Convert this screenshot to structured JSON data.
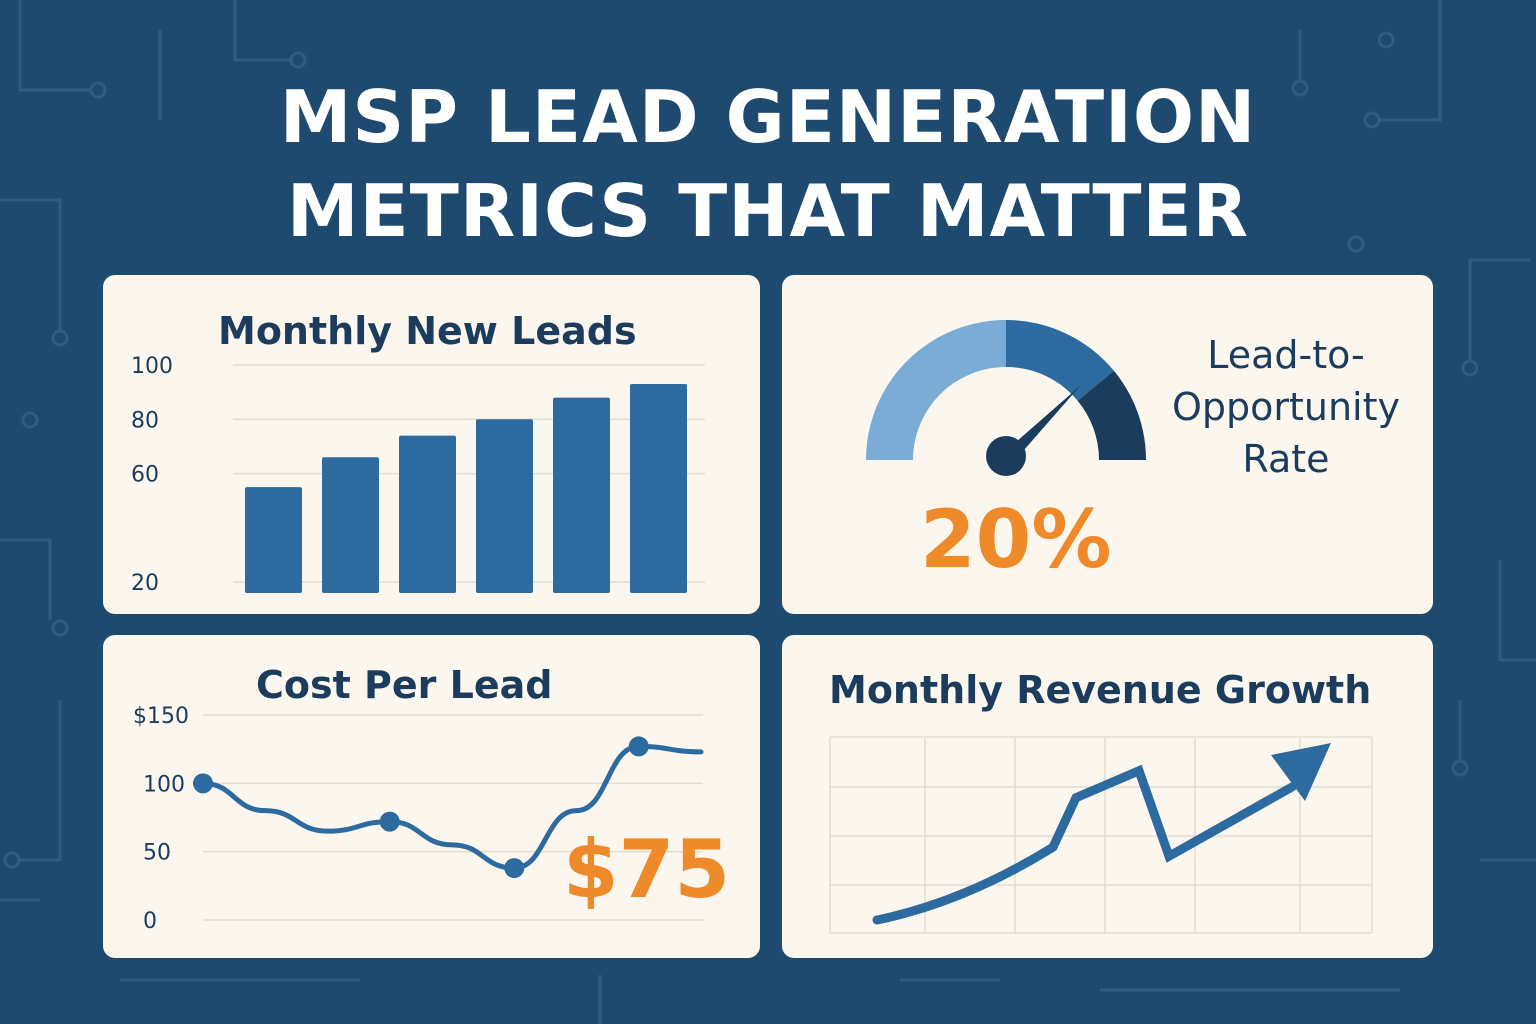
{
  "title_line1": "MSP LEAD GENERATION",
  "title_line2": "METRICS THAT MATTER",
  "colors": {
    "background": "#1e4a70",
    "panel": "#fbf7ee",
    "bar": "#2d6a9f",
    "accent": "#ee8a2a",
    "text": "#1c3c5e"
  },
  "panels": {
    "leads": {
      "title": "Monthly New Leads"
    },
    "conversion": {
      "label_line1": "Lead-to-",
      "label_line2": "Opportunity",
      "label_line3": "Rate",
      "value": "20%"
    },
    "cpl": {
      "title": "Cost Per Lead",
      "value": "$75"
    },
    "revenue": {
      "title": "Monthly Revenue Growth"
    }
  },
  "chart_data": [
    {
      "type": "bar",
      "title": "Monthly New Leads",
      "values": [
        55,
        66,
        74,
        80,
        88,
        93
      ],
      "ylim": [
        16,
        100
      ],
      "yticks": [
        100,
        80,
        60,
        20
      ],
      "grid": true
    },
    {
      "type": "gauge",
      "title": "Lead-to-Opportunity Rate",
      "value": 20,
      "unit": "%",
      "segments": [
        {
          "color": "#7aacd6"
        },
        {
          "color": "#2d6a9f"
        },
        {
          "color": "#1c3c5e"
        }
      ]
    },
    {
      "type": "line",
      "title": "Cost Per Lead",
      "x": [
        0,
        1,
        2,
        3,
        4,
        5,
        6,
        7,
        8
      ],
      "y": [
        100,
        80,
        65,
        72,
        55,
        38,
        80,
        127,
        123
      ],
      "markers": [
        0,
        3,
        5,
        7
      ],
      "ylim": [
        0,
        150
      ],
      "yticks": [
        "$150",
        "100",
        "50",
        "0"
      ],
      "highlight": "$75",
      "grid": true
    },
    {
      "type": "line",
      "title": "Monthly Revenue Growth",
      "x": [
        0,
        1,
        2,
        3,
        4,
        5
      ],
      "y": [
        0,
        15,
        47,
        95,
        45,
        100
      ],
      "arrow": true,
      "grid": true
    }
  ]
}
